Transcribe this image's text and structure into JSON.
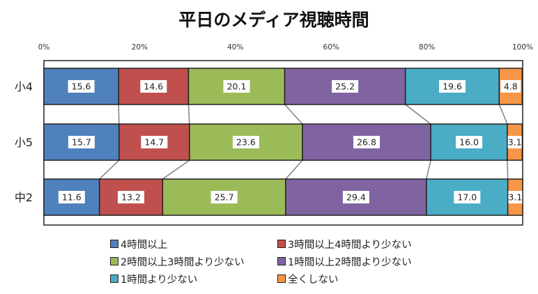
{
  "chart_data": {
    "type": "bar",
    "orientation": "horizontal",
    "stacked": "percent",
    "title": "平日のメディア視聴時間",
    "categories": [
      "小4",
      "小5",
      "中2"
    ],
    "series": [
      {
        "name": "4時間以上",
        "color": "#4f81bd",
        "values": [
          15.6,
          15.7,
          11.6
        ]
      },
      {
        "name": "3時間以上4時間より少ない",
        "color": "#c0504d",
        "values": [
          14.6,
          14.7,
          13.2
        ]
      },
      {
        "name": "2時間以上3時間より少ない",
        "color": "#9bbb59",
        "values": [
          20.1,
          23.6,
          25.7
        ]
      },
      {
        "name": "1時間以上2時間より少ない",
        "color": "#8064a2",
        "values": [
          25.2,
          26.8,
          29.4
        ]
      },
      {
        "name": "1時間より少ない",
        "color": "#4bacc6",
        "values": [
          19.6,
          16.0,
          17.0
        ]
      },
      {
        "name": "全くしない",
        "color": "#f79646",
        "values": [
          4.8,
          3.1,
          3.1
        ]
      }
    ],
    "xlim": [
      0,
      100
    ],
    "x_tick_labels": [
      "0%",
      "20%",
      "40%",
      "60%",
      "80%",
      "100%"
    ],
    "series_lines": true,
    "grid": false,
    "legend_position": "bottom"
  }
}
